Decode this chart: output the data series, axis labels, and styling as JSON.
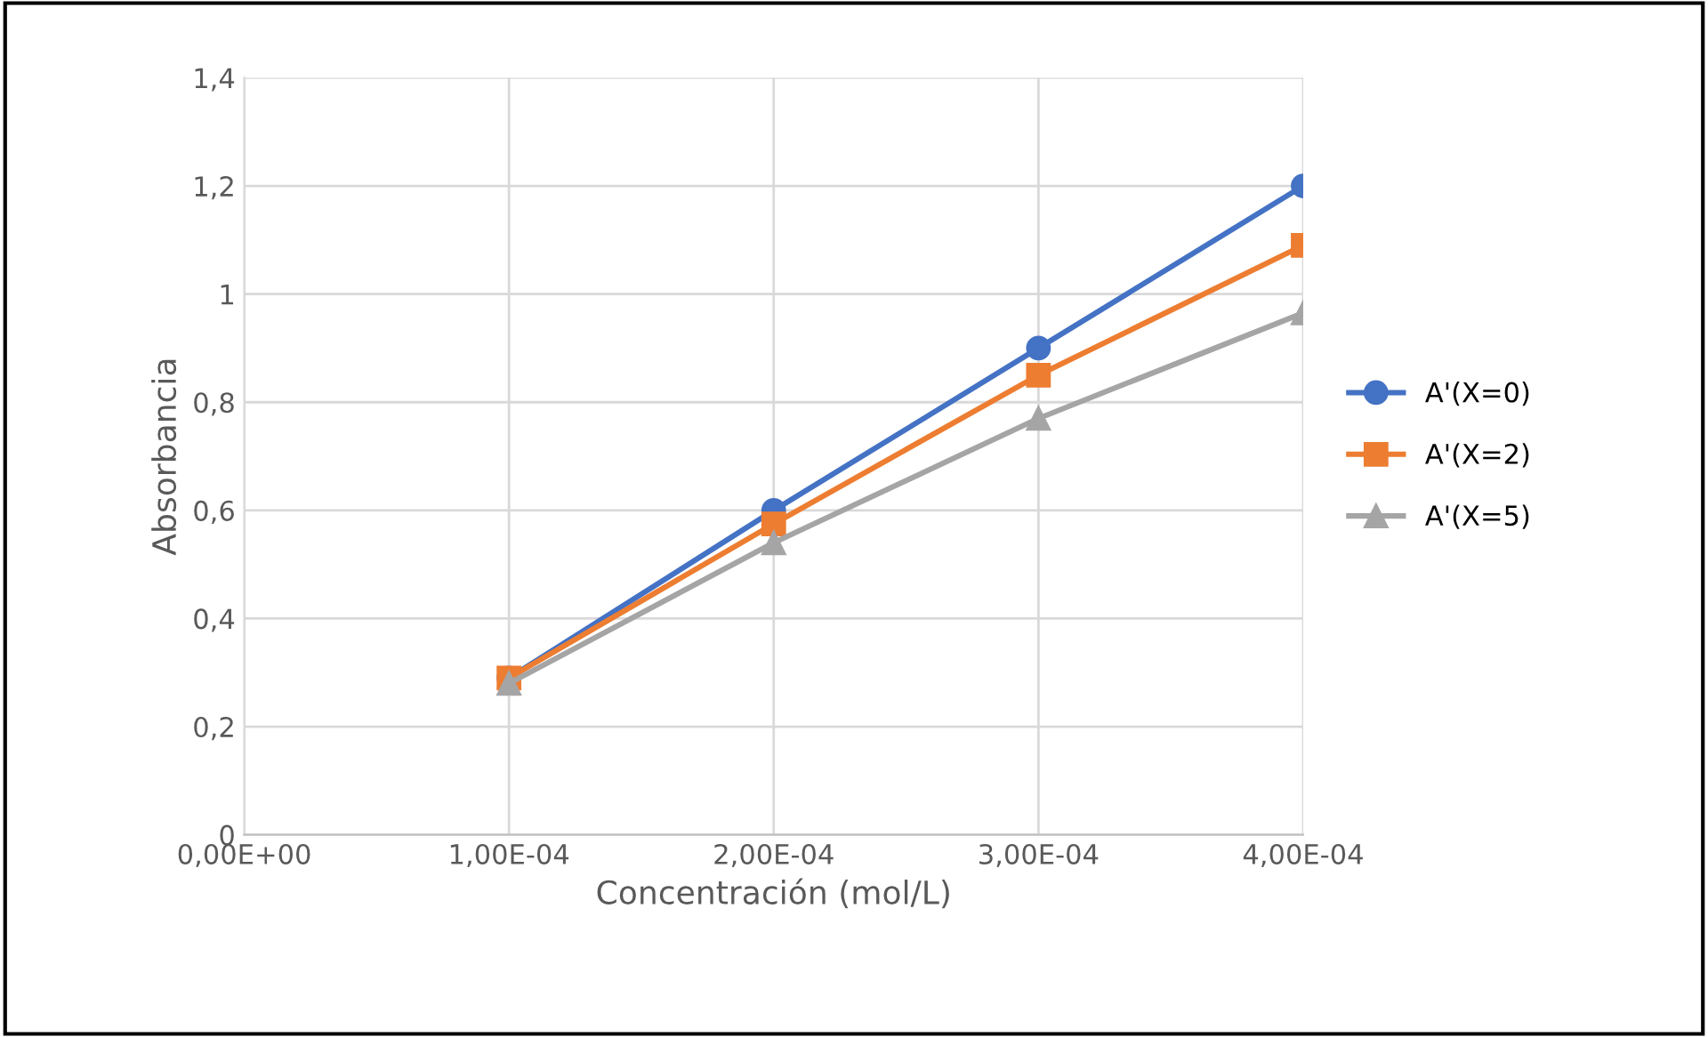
{
  "chart_data": {
    "type": "line",
    "xlabel": "Concentración (mol/L)",
    "ylabel": "Absorbancia",
    "categories": [
      "0,00E+00",
      "1,00E-04",
      "2,00E-04",
      "3,00E-04",
      "4,00E-04"
    ],
    "series": [
      {
        "name": "A'(X=0)",
        "color": "#4472c4",
        "marker": "circle",
        "values": [
          null,
          0.29,
          0.6,
          0.9,
          1.2
        ]
      },
      {
        "name": "A'(X=2)",
        "color": "#ed7d31",
        "marker": "square",
        "values": [
          null,
          0.29,
          0.575,
          0.85,
          1.09
        ]
      },
      {
        "name": "A'(X=5)",
        "color": "#a5a5a5",
        "marker": "triangle",
        "values": [
          null,
          0.28,
          0.54,
          0.77,
          0.965
        ]
      }
    ],
    "ylim": [
      0,
      1.4
    ],
    "yticks": [
      0,
      {
        "value": 0.2,
        "label": "0,2"
      },
      {
        "value": 0.4,
        "label": "0,4"
      },
      {
        "value": 0.6,
        "label": "0,6"
      },
      {
        "value": 0.8,
        "label": "0,8"
      },
      1,
      {
        "value": 1.2,
        "label": "1,2"
      },
      {
        "value": 1.4,
        "label": "1,4"
      }
    ],
    "grid": true,
    "legend": "right",
    "line_style": "solid"
  }
}
